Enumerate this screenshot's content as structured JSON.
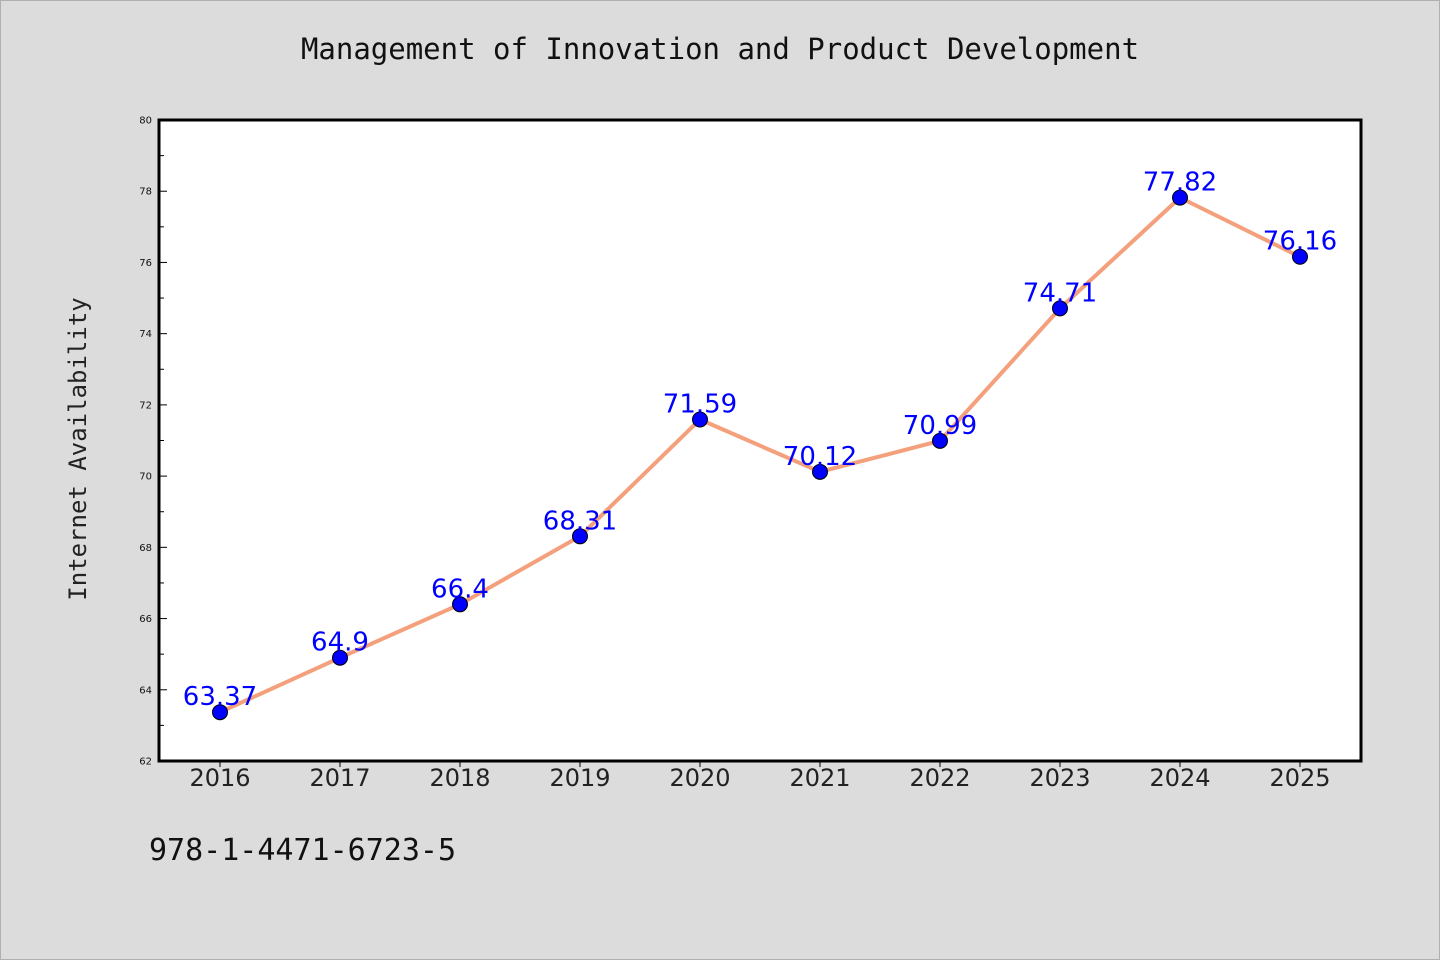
{
  "chart_data": {
    "type": "line",
    "title": "Management of Innovation and Product Development",
    "xlabel": "",
    "ylabel": "Internet Availability",
    "categories": [
      "2016",
      "2017",
      "2018",
      "2019",
      "2020",
      "2021",
      "2022",
      "2023",
      "2024",
      "2025"
    ],
    "series": [
      {
        "values": [
          63.37,
          64.9,
          66.4,
          68.31,
          71.59,
          70.12,
          70.99,
          74.71,
          77.82,
          76.16
        ],
        "data_labels": [
          "63.37",
          "64.9",
          "66.4",
          "68.31",
          "71.59",
          "70.12",
          "70.99",
          "74.71",
          "77.82",
          "76.16"
        ]
      }
    ],
    "ylim": [
      62,
      80
    ],
    "y_ticks": [
      "62",
      "64",
      "66",
      "68",
      "70",
      "72",
      "74",
      "76",
      "78",
      "80"
    ],
    "grid": false,
    "colors": {
      "line": "#f4a07c",
      "marker": "#0000ff",
      "data_label": "#0000ff",
      "plot_background": "#ffffff",
      "page_background": "#dcdcdc"
    }
  },
  "footer": {
    "isbn": "978-1-4471-6723-5"
  }
}
